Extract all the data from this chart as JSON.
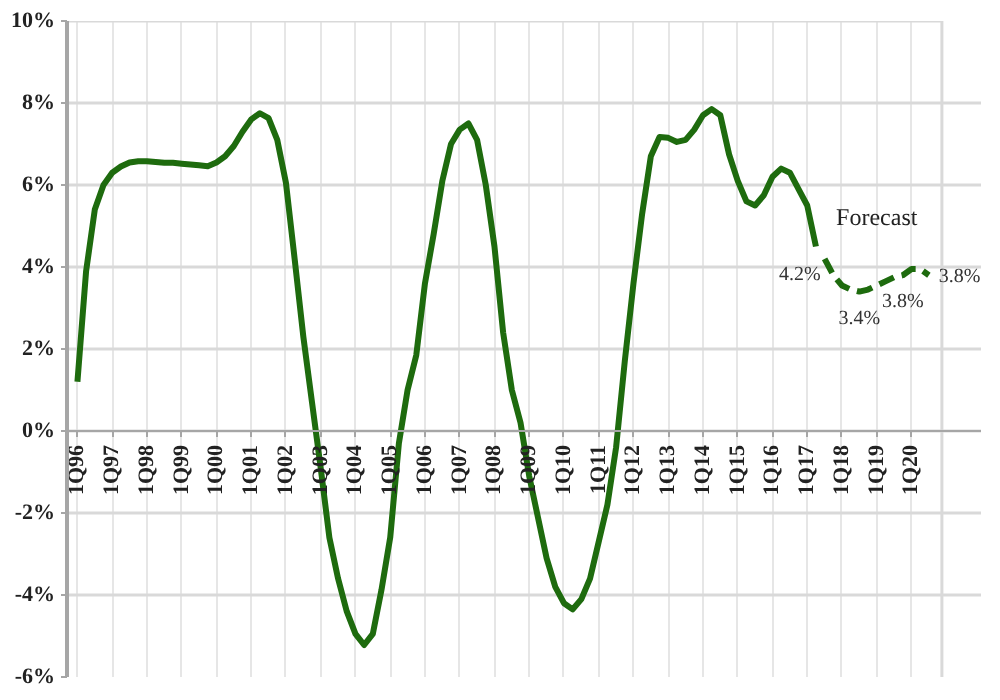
{
  "chart_data": {
    "type": "line",
    "categories": [
      "1Q96",
      null,
      null,
      null,
      "1Q97",
      null,
      null,
      null,
      "1Q98",
      null,
      null,
      null,
      "1Q99",
      null,
      null,
      null,
      "1Q00",
      null,
      null,
      null,
      "1Q01",
      null,
      null,
      null,
      "1Q02",
      null,
      null,
      null,
      "1Q03",
      null,
      null,
      null,
      "1Q04",
      null,
      null,
      null,
      "1Q05",
      null,
      null,
      null,
      "1Q06",
      null,
      null,
      null,
      "1Q07",
      null,
      null,
      null,
      "1Q08",
      null,
      null,
      null,
      "1Q09",
      null,
      null,
      null,
      "1Q10",
      null,
      null,
      null,
      "1Q11",
      null,
      null,
      null,
      "1Q12",
      null,
      null,
      null,
      "1Q13",
      null,
      null,
      null,
      "1Q14",
      null,
      null,
      null,
      "1Q15",
      null,
      null,
      null,
      "1Q16",
      null,
      null,
      null,
      "1Q17",
      null,
      null,
      null,
      "1Q18",
      null,
      null,
      null,
      "1Q19",
      null,
      null,
      null,
      "1Q20",
      null,
      null,
      null
    ],
    "series": [
      {
        "color": "#1e6b0e",
        "line_style": "solid",
        "values": [
          1.2,
          3.9,
          5.4,
          6.0,
          6.3,
          6.45,
          6.55,
          6.58,
          6.58,
          6.56,
          6.54,
          6.54,
          6.52,
          6.5,
          6.48,
          6.46,
          6.55,
          6.7,
          6.95,
          7.3,
          7.6,
          7.75,
          7.63,
          7.1,
          6.05,
          4.2,
          2.3,
          0.7,
          -0.9,
          -2.6,
          -3.6,
          -4.4,
          -4.95,
          -5.22,
          -4.95,
          -3.87,
          -2.6,
          -0.3,
          1.0,
          1.85,
          3.6,
          4.8,
          6.1,
          7.0,
          7.35,
          7.5,
          7.1,
          6.0,
          4.5,
          2.4,
          1.0,
          0.2,
          -1.1,
          -2.1,
          -3.1,
          -3.8,
          -4.2,
          -4.35,
          -4.1,
          -3.6,
          -2.7,
          -1.8,
          -0.4,
          1.7,
          3.6,
          5.3,
          6.7,
          7.17,
          7.15,
          7.05,
          7.1,
          7.35,
          7.7,
          7.85,
          7.7,
          6.75,
          6.1,
          5.6,
          5.5,
          5.75,
          6.2,
          6.4,
          6.3,
          5.9,
          5.5,
          4.5,
          null,
          null,
          null,
          null,
          null,
          null,
          null,
          null,
          null,
          null,
          null,
          null,
          null,
          null
        ]
      },
      {
        "color": "#1e6b0e",
        "line_style": "dashed",
        "values": [
          null,
          null,
          null,
          null,
          null,
          null,
          null,
          null,
          null,
          null,
          null,
          null,
          null,
          null,
          null,
          null,
          null,
          null,
          null,
          null,
          null,
          null,
          null,
          null,
          null,
          null,
          null,
          null,
          null,
          null,
          null,
          null,
          null,
          null,
          null,
          null,
          null,
          null,
          null,
          null,
          null,
          null,
          null,
          null,
          null,
          null,
          null,
          null,
          null,
          null,
          null,
          null,
          null,
          null,
          null,
          null,
          null,
          null,
          null,
          null,
          null,
          null,
          null,
          null,
          null,
          null,
          null,
          null,
          null,
          null,
          null,
          null,
          null,
          null,
          null,
          null,
          null,
          null,
          null,
          null,
          null,
          null,
          null,
          null,
          null,
          null,
          4.2,
          3.8,
          3.55,
          3.45,
          3.4,
          3.45,
          3.55,
          3.65,
          3.75,
          3.8,
          3.95,
          3.95,
          3.8,
          null
        ],
        "value_labels": [
          null,
          null,
          null,
          null,
          null,
          null,
          null,
          null,
          null,
          null,
          null,
          null,
          null,
          null,
          null,
          null,
          null,
          null,
          null,
          null,
          null,
          null,
          null,
          null,
          null,
          null,
          null,
          null,
          null,
          null,
          null,
          null,
          null,
          null,
          null,
          null,
          null,
          null,
          null,
          null,
          null,
          null,
          null,
          null,
          null,
          null,
          null,
          null,
          null,
          null,
          null,
          null,
          null,
          null,
          null,
          null,
          null,
          null,
          null,
          null,
          null,
          null,
          null,
          null,
          null,
          null,
          null,
          null,
          null,
          null,
          null,
          null,
          null,
          null,
          null,
          null,
          null,
          null,
          null,
          null,
          null,
          null,
          null,
          null,
          null,
          null,
          "4.2%",
          null,
          null,
          null,
          "3.4%",
          null,
          null,
          null,
          null,
          "3.8%",
          null,
          null,
          "3.8%",
          null
        ]
      }
    ],
    "annotations": [
      "Forecast"
    ],
    "ylim": [
      -6,
      10
    ],
    "yticks": [
      {
        "value": -6,
        "label": "-6%"
      },
      {
        "value": -4,
        "label": "-4%"
      },
      {
        "value": -2,
        "label": "-2%"
      },
      {
        "value": 0,
        "label": "0%"
      },
      {
        "value": 2,
        "label": "2%"
      },
      {
        "value": 4,
        "label": "4%"
      },
      {
        "value": 6,
        "label": "6%"
      },
      {
        "value": 8,
        "label": "8%"
      },
      {
        "value": 10,
        "label": "10%"
      }
    ],
    "grid": true
  }
}
